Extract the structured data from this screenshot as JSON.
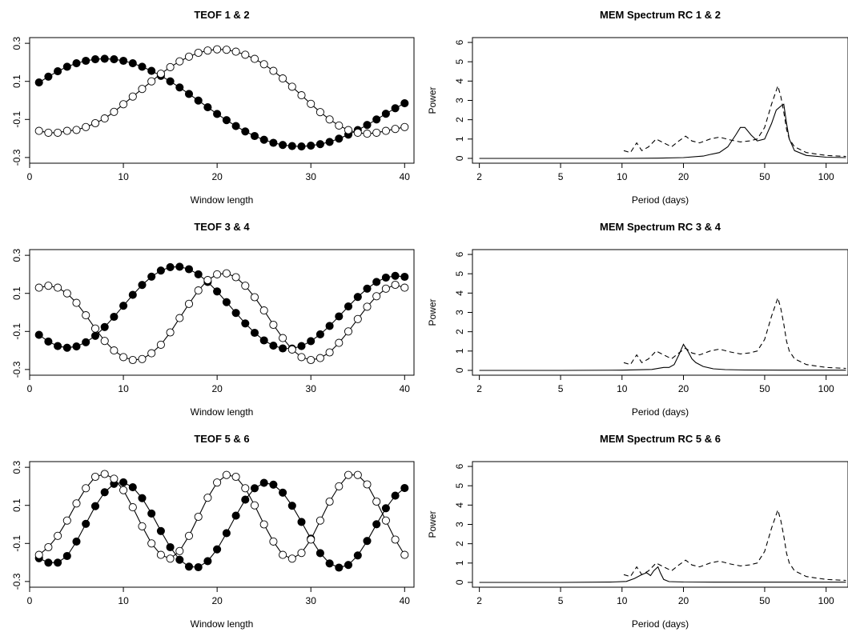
{
  "chart_data": [
    {
      "type": "line",
      "title": "TEOF 1 & 2",
      "xlabel": "Window length",
      "ylabel": "",
      "xlim": [
        0,
        41
      ],
      "ylim": [
        -0.33,
        0.33
      ],
      "xticks": [
        0,
        10,
        20,
        30,
        40
      ],
      "yticks": [
        -0.3,
        -0.1,
        0.1,
        0.3
      ],
      "ytick_labels": [
        "-0.3",
        "-0.1",
        "0.1",
        "0.3"
      ],
      "grid": false,
      "series": [
        {
          "marker": "filled",
          "x": [
            1,
            2,
            3,
            4,
            5,
            6,
            7,
            8,
            9,
            10,
            11,
            12,
            13,
            14,
            15,
            16,
            17,
            18,
            19,
            20,
            21,
            22,
            23,
            24,
            25,
            26,
            27,
            28,
            29,
            30,
            31,
            32,
            33,
            34,
            35,
            36,
            37,
            38,
            39,
            40
          ],
          "y": [
            0.094,
            0.125,
            0.153,
            0.177,
            0.195,
            0.208,
            0.216,
            0.219,
            0.216,
            0.208,
            0.195,
            0.177,
            0.155,
            0.129,
            0.1,
            0.068,
            0.034,
            -0.001,
            -0.036,
            -0.071,
            -0.104,
            -0.135,
            -0.163,
            -0.187,
            -0.207,
            -0.223,
            -0.234,
            -0.24,
            -0.242,
            -0.238,
            -0.23,
            -0.218,
            -0.201,
            -0.18,
            -0.156,
            -0.129,
            -0.1,
            -0.07,
            -0.041,
            -0.015
          ]
        },
        {
          "marker": "open",
          "x": [
            1,
            2,
            3,
            4,
            5,
            6,
            7,
            8,
            9,
            10,
            11,
            12,
            13,
            14,
            15,
            16,
            17,
            18,
            19,
            20,
            21,
            22,
            23,
            24,
            25,
            26,
            27,
            28,
            29,
            30,
            31,
            32,
            33,
            34,
            35,
            36,
            37,
            38,
            39,
            40
          ],
          "y": [
            -0.16,
            -0.17,
            -0.17,
            -0.16,
            -0.155,
            -0.14,
            -0.12,
            -0.095,
            -0.06,
            -0.02,
            0.02,
            0.06,
            0.1,
            0.14,
            0.175,
            0.205,
            0.23,
            0.25,
            0.262,
            0.268,
            0.266,
            0.256,
            0.24,
            0.218,
            0.19,
            0.155,
            0.115,
            0.072,
            0.027,
            -0.018,
            -0.062,
            -0.1,
            -0.132,
            -0.156,
            -0.17,
            -0.175,
            -0.17,
            -0.16,
            -0.15,
            -0.14
          ]
        }
      ]
    },
    {
      "type": "line",
      "title": "MEM Spectrum RC 1 & 2",
      "xlabel": "Period (days)",
      "ylabel": "Power",
      "xscale": "log",
      "xlim": [
        1.85,
        128
      ],
      "ylim": [
        -0.25,
        6.25
      ],
      "xticks": [
        2,
        5,
        10,
        20,
        50,
        100
      ],
      "yticks": [
        0,
        1,
        2,
        3,
        4,
        5,
        6
      ],
      "grid": false,
      "series": [
        {
          "style": "solid",
          "x": [
            2,
            5,
            10,
            15,
            20,
            25,
            27,
            30,
            33,
            36,
            38,
            40,
            43,
            46,
            50,
            54,
            57,
            60,
            62,
            64,
            66,
            70,
            80,
            100,
            125
          ],
          "y": [
            0,
            0,
            0,
            0.01,
            0.04,
            0.12,
            0.2,
            0.3,
            0.6,
            1.2,
            1.6,
            1.6,
            1.2,
            0.9,
            1.0,
            1.8,
            2.5,
            2.7,
            2.8,
            1.8,
            1.0,
            0.4,
            0.15,
            0.06,
            0.04
          ]
        },
        {
          "style": "dashed",
          "x": [
            10.2,
            11,
            11.8,
            12.5,
            13.5,
            14.7,
            16,
            17.5,
            19,
            20.5,
            22,
            24,
            27,
            30,
            34,
            38,
            42,
            46,
            50,
            54,
            58,
            60,
            62,
            64,
            66,
            70,
            80,
            100,
            125
          ],
          "y": [
            0.4,
            0.3,
            0.8,
            0.4,
            0.6,
            1.0,
            0.8,
            0.6,
            0.9,
            1.15,
            0.9,
            0.8,
            1.0,
            1.1,
            0.95,
            0.85,
            0.9,
            1.0,
            1.6,
            2.8,
            3.75,
            3.2,
            2.4,
            1.5,
            1.0,
            0.6,
            0.3,
            0.15,
            0.1
          ]
        }
      ]
    },
    {
      "type": "line",
      "title": "TEOF 3 & 4",
      "xlabel": "Window length",
      "ylabel": "",
      "xlim": [
        0,
        41
      ],
      "ylim": [
        -0.33,
        0.33
      ],
      "xticks": [
        0,
        10,
        20,
        30,
        40
      ],
      "yticks": [
        -0.3,
        -0.1,
        0.1,
        0.3
      ],
      "ytick_labels": [
        "-0.3",
        "-0.1",
        "0.1",
        "0.3"
      ],
      "grid": false,
      "series": [
        {
          "marker": "filled",
          "x": [
            1,
            2,
            3,
            4,
            5,
            6,
            7,
            8,
            9,
            10,
            11,
            12,
            13,
            14,
            15,
            16,
            17,
            18,
            19,
            20,
            21,
            22,
            23,
            24,
            25,
            26,
            27,
            28,
            29,
            30,
            31,
            32,
            33,
            34,
            35,
            36,
            37,
            38,
            39,
            40
          ],
          "y": [
            -0.118,
            -0.153,
            -0.177,
            -0.186,
            -0.179,
            -0.157,
            -0.123,
            -0.077,
            -0.023,
            0.035,
            0.092,
            0.144,
            0.188,
            0.22,
            0.238,
            0.24,
            0.227,
            0.2,
            0.16,
            0.11,
            0.054,
            -0.003,
            -0.058,
            -0.107,
            -0.147,
            -0.175,
            -0.189,
            -0.19,
            -0.177,
            -0.151,
            -0.115,
            -0.071,
            -0.021,
            0.031,
            0.081,
            0.125,
            0.16,
            0.183,
            0.192,
            0.187
          ]
        },
        {
          "marker": "open",
          "x": [
            1,
            2,
            3,
            4,
            5,
            6,
            7,
            8,
            9,
            10,
            11,
            12,
            13,
            14,
            15,
            16,
            17,
            18,
            19,
            20,
            21,
            22,
            23,
            24,
            25,
            26,
            27,
            28,
            29,
            30,
            31,
            32,
            33,
            34,
            35,
            36,
            37,
            38,
            39,
            40
          ],
          "y": [
            0.13,
            0.14,
            0.13,
            0.1,
            0.05,
            -0.015,
            -0.085,
            -0.15,
            -0.2,
            -0.235,
            -0.25,
            -0.245,
            -0.215,
            -0.17,
            -0.105,
            -0.03,
            0.045,
            0.115,
            0.17,
            0.2,
            0.205,
            0.185,
            0.14,
            0.08,
            0.01,
            -0.065,
            -0.135,
            -0.195,
            -0.235,
            -0.25,
            -0.24,
            -0.21,
            -0.16,
            -0.1,
            -0.035,
            0.03,
            0.085,
            0.125,
            0.145,
            0.13
          ]
        }
      ]
    },
    {
      "type": "line",
      "title": "MEM Spectrum RC 3 & 4",
      "xlabel": "Period (days)",
      "ylabel": "Power",
      "xscale": "log",
      "xlim": [
        1.85,
        128
      ],
      "ylim": [
        -0.25,
        6.25
      ],
      "xticks": [
        2,
        5,
        10,
        20,
        50,
        100
      ],
      "yticks": [
        0,
        1,
        2,
        3,
        4,
        5,
        6
      ],
      "grid": false,
      "series": [
        {
          "style": "solid",
          "x": [
            2,
            5,
            10,
            14,
            16,
            17,
            18,
            19,
            20,
            21,
            22,
            23,
            25,
            28,
            32,
            40,
            60,
            125
          ],
          "y": [
            0,
            0,
            0.01,
            0.05,
            0.15,
            0.15,
            0.3,
            0.8,
            1.35,
            1.0,
            0.6,
            0.4,
            0.2,
            0.08,
            0.04,
            0.02,
            0.01,
            0.01
          ]
        },
        {
          "style": "dashed",
          "x": [
            10.2,
            11,
            11.8,
            12.5,
            13.5,
            14.7,
            16,
            17.5,
            19,
            20.5,
            22,
            24,
            27,
            30,
            34,
            38,
            42,
            46,
            50,
            54,
            58,
            60,
            62,
            64,
            66,
            70,
            80,
            100,
            125
          ],
          "y": [
            0.4,
            0.3,
            0.8,
            0.4,
            0.6,
            1.0,
            0.8,
            0.6,
            0.9,
            1.15,
            0.9,
            0.8,
            1.0,
            1.1,
            0.95,
            0.85,
            0.9,
            1.0,
            1.6,
            2.8,
            3.75,
            3.2,
            2.4,
            1.5,
            1.0,
            0.6,
            0.3,
            0.15,
            0.1
          ]
        }
      ]
    },
    {
      "type": "line",
      "title": "TEOF 5 & 6",
      "xlabel": "Window length",
      "ylabel": "",
      "xlim": [
        0,
        41
      ],
      "ylim": [
        -0.33,
        0.33
      ],
      "xticks": [
        0,
        10,
        20,
        30,
        40
      ],
      "yticks": [
        -0.3,
        -0.1,
        0.1,
        0.3
      ],
      "ytick_labels": [
        "-0.3",
        "-0.1",
        "0.1",
        "0.3"
      ],
      "grid": false,
      "series": [
        {
          "marker": "filled",
          "x": [
            1,
            2,
            3,
            4,
            5,
            6,
            7,
            8,
            9,
            10,
            11,
            12,
            13,
            14,
            15,
            16,
            17,
            18,
            19,
            20,
            21,
            22,
            23,
            24,
            25,
            26,
            27,
            28,
            29,
            30,
            31,
            32,
            33,
            34,
            35,
            36,
            37,
            38,
            39,
            40
          ],
          "y": [
            -0.178,
            -0.201,
            -0.201,
            -0.166,
            -0.09,
            0.003,
            0.096,
            0.169,
            0.213,
            0.221,
            0.195,
            0.138,
            0.057,
            -0.035,
            -0.12,
            -0.186,
            -0.222,
            -0.225,
            -0.193,
            -0.131,
            -0.046,
            0.046,
            0.13,
            0.19,
            0.218,
            0.209,
            0.167,
            0.098,
            0.013,
            -0.075,
            -0.151,
            -0.205,
            -0.227,
            -0.213,
            -0.163,
            -0.087,
            0.001,
            0.085,
            0.151,
            0.191
          ]
        },
        {
          "marker": "open",
          "x": [
            1,
            2,
            3,
            4,
            5,
            6,
            7,
            8,
            9,
            10,
            11,
            12,
            13,
            14,
            15,
            16,
            17,
            18,
            19,
            20,
            21,
            22,
            23,
            24,
            25,
            26,
            27,
            28,
            29,
            30,
            31,
            32,
            33,
            34,
            35,
            36,
            37,
            38,
            39,
            40
          ],
          "y": [
            -0.16,
            -0.12,
            -0.06,
            0.02,
            0.11,
            0.19,
            0.25,
            0.265,
            0.24,
            0.18,
            0.09,
            -0.01,
            -0.1,
            -0.16,
            -0.18,
            -0.14,
            -0.06,
            0.04,
            0.14,
            0.22,
            0.26,
            0.25,
            0.19,
            0.1,
            0.0,
            -0.09,
            -0.16,
            -0.18,
            -0.15,
            -0.08,
            0.02,
            0.12,
            0.2,
            0.26,
            0.26,
            0.21,
            0.12,
            0.02,
            -0.08,
            -0.16
          ]
        }
      ]
    },
    {
      "type": "line",
      "title": "MEM Spectrum RC 5 & 6",
      "xlabel": "Period (days)",
      "ylabel": "Power",
      "xscale": "log",
      "xlim": [
        1.85,
        128
      ],
      "ylim": [
        -0.25,
        6.25
      ],
      "xticks": [
        2,
        5,
        10,
        20,
        50,
        100
      ],
      "yticks": [
        0,
        1,
        2,
        3,
        4,
        5,
        6
      ],
      "grid": false,
      "series": [
        {
          "style": "solid",
          "x": [
            2,
            5,
            9,
            10.5,
            11.5,
            12.5,
            13.2,
            13.8,
            14.3,
            15,
            15.4,
            16,
            17,
            20,
            30,
            60,
            125
          ],
          "y": [
            0,
            0,
            0.02,
            0.05,
            0.2,
            0.4,
            0.5,
            0.35,
            0.6,
            0.8,
            0.5,
            0.15,
            0.04,
            0.02,
            0.01,
            0.01,
            0.01
          ]
        },
        {
          "style": "dashed",
          "x": [
            10.2,
            11,
            11.8,
            12.5,
            13.5,
            14.7,
            16,
            17.5,
            19,
            20.5,
            22,
            24,
            27,
            30,
            34,
            38,
            42,
            46,
            50,
            54,
            58,
            60,
            62,
            64,
            66,
            70,
            80,
            100,
            125
          ],
          "y": [
            0.4,
            0.3,
            0.8,
            0.4,
            0.6,
            1.0,
            0.8,
            0.6,
            0.9,
            1.15,
            0.9,
            0.8,
            1.0,
            1.1,
            0.95,
            0.85,
            0.9,
            1.0,
            1.6,
            2.8,
            3.75,
            3.2,
            2.4,
            1.5,
            1.0,
            0.6,
            0.3,
            0.15,
            0.1
          ]
        }
      ]
    }
  ]
}
